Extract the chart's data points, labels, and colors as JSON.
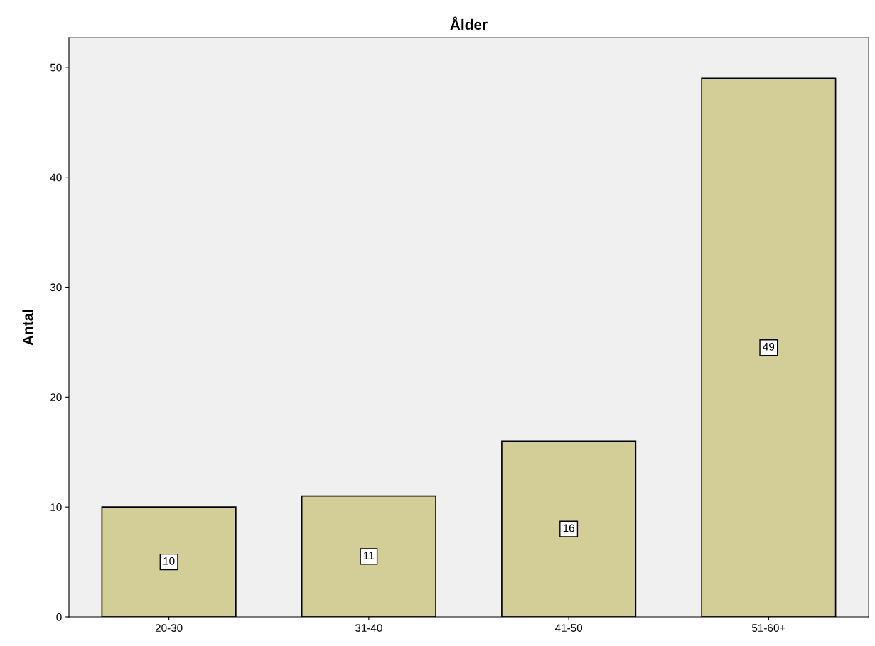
{
  "chart_data": {
    "type": "bar",
    "title": "Ålder",
    "ylabel": "Antal",
    "categories": [
      "20-30",
      "31-40",
      "41-50",
      "51-60+"
    ],
    "values": [
      10,
      11,
      16,
      49
    ],
    "color": "#d3ce97",
    "ylim": [
      0,
      52.7
    ],
    "yticks": [
      0,
      10,
      20,
      30,
      40,
      50
    ],
    "grid": false,
    "data_labels": true
  }
}
